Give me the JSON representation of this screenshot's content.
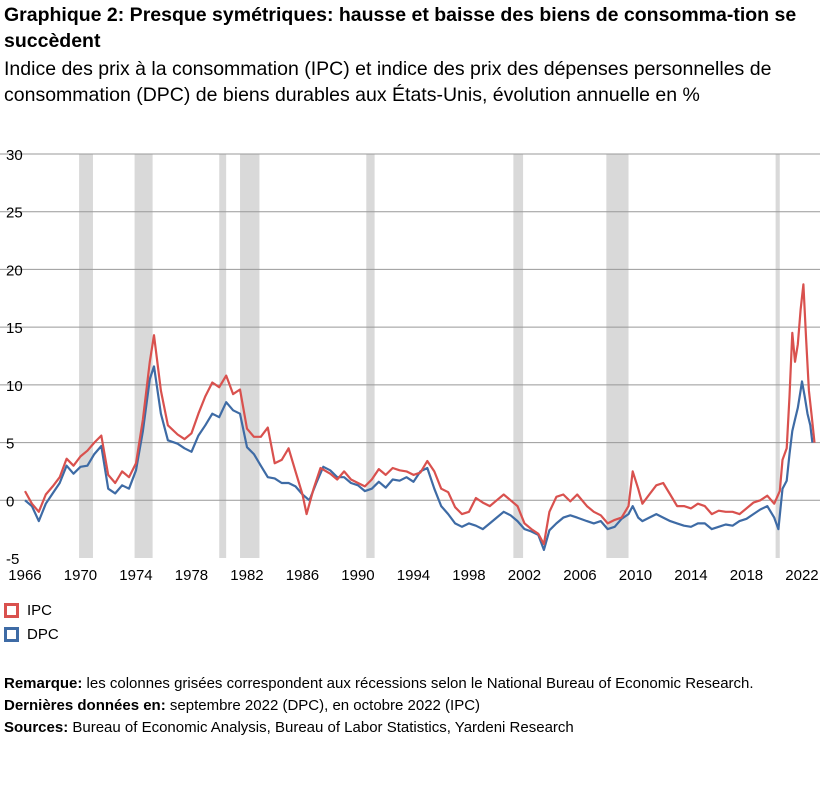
{
  "header": {
    "title": "Graphique 2: Presque symétriques: hausse et baisse des biens de consomma-tion se succèdent",
    "subtitle": "Indice des prix à la consommation (IPC) et indice des prix des dépenses personnelles de consommation (DPC) de biens durables aux États-Unis, évolution annuelle en %"
  },
  "chart_data": {
    "type": "line",
    "title": "",
    "xlabel": "",
    "ylabel": "",
    "xlim": [
      1964.2,
      2023.3
    ],
    "ylim": [
      -5,
      30
    ],
    "y_ticks": [
      30,
      25,
      20,
      15,
      10,
      5,
      0,
      -5
    ],
    "x_tick_labels": [
      "1966",
      "1970",
      "1974",
      "1978",
      "1982",
      "1986",
      "1990",
      "1994",
      "1998",
      "2002",
      "2006",
      "2010",
      "2014",
      "2018",
      "2022"
    ],
    "grid": "horizontal",
    "recessions": [
      [
        1969.9,
        1970.9
      ],
      [
        1973.9,
        1975.2
      ],
      [
        1980.0,
        1980.5
      ],
      [
        1981.5,
        1982.9
      ],
      [
        1990.6,
        1991.2
      ],
      [
        2001.2,
        2001.9
      ],
      [
        2007.9,
        2009.5
      ],
      [
        2020.1,
        2020.4
      ]
    ],
    "series": [
      {
        "name": "IPC",
        "color": "#d9514e",
        "points": [
          [
            1966.0,
            0.8
          ],
          [
            1966.5,
            -0.3
          ],
          [
            1967.0,
            -1.0
          ],
          [
            1967.5,
            0.5
          ],
          [
            1968.0,
            1.2
          ],
          [
            1968.5,
            2.0
          ],
          [
            1969.0,
            3.6
          ],
          [
            1969.5,
            3.0
          ],
          [
            1970.0,
            3.8
          ],
          [
            1970.5,
            4.3
          ],
          [
            1971.0,
            5.0
          ],
          [
            1971.5,
            5.6
          ],
          [
            1972.0,
            2.2
          ],
          [
            1972.5,
            1.5
          ],
          [
            1973.0,
            2.5
          ],
          [
            1973.5,
            2.0
          ],
          [
            1974.0,
            3.2
          ],
          [
            1974.5,
            7.0
          ],
          [
            1975.0,
            12.0
          ],
          [
            1975.3,
            14.3
          ],
          [
            1975.8,
            9.5
          ],
          [
            1976.3,
            6.5
          ],
          [
            1977.0,
            5.7
          ],
          [
            1977.5,
            5.3
          ],
          [
            1978.0,
            5.8
          ],
          [
            1978.5,
            7.5
          ],
          [
            1979.0,
            9.0
          ],
          [
            1979.5,
            10.2
          ],
          [
            1980.0,
            9.8
          ],
          [
            1980.5,
            10.8
          ],
          [
            1981.0,
            9.2
          ],
          [
            1981.5,
            9.6
          ],
          [
            1982.0,
            6.2
          ],
          [
            1982.5,
            5.5
          ],
          [
            1983.0,
            5.5
          ],
          [
            1983.5,
            6.3
          ],
          [
            1984.0,
            3.2
          ],
          [
            1984.5,
            3.5
          ],
          [
            1985.0,
            4.5
          ],
          [
            1985.5,
            2.5
          ],
          [
            1986.0,
            0.5
          ],
          [
            1986.3,
            -1.2
          ],
          [
            1986.8,
            1.0
          ],
          [
            1987.3,
            2.8
          ],
          [
            1988.0,
            2.3
          ],
          [
            1988.5,
            1.8
          ],
          [
            1989.0,
            2.5
          ],
          [
            1989.5,
            1.8
          ],
          [
            1990.0,
            1.5
          ],
          [
            1990.5,
            1.2
          ],
          [
            1991.0,
            1.8
          ],
          [
            1991.5,
            2.7
          ],
          [
            1992.0,
            2.2
          ],
          [
            1992.5,
            2.8
          ],
          [
            1993.0,
            2.6
          ],
          [
            1993.5,
            2.5
          ],
          [
            1994.0,
            2.2
          ],
          [
            1994.5,
            2.4
          ],
          [
            1995.0,
            3.4
          ],
          [
            1995.5,
            2.5
          ],
          [
            1996.0,
            1.0
          ],
          [
            1996.5,
            0.7
          ],
          [
            1997.0,
            -0.6
          ],
          [
            1997.5,
            -1.2
          ],
          [
            1998.0,
            -1.0
          ],
          [
            1998.5,
            0.2
          ],
          [
            1999.0,
            -0.2
          ],
          [
            1999.5,
            -0.5
          ],
          [
            2000.0,
            0.0
          ],
          [
            2000.5,
            0.5
          ],
          [
            2001.0,
            0.0
          ],
          [
            2001.5,
            -0.5
          ],
          [
            2002.0,
            -2.0
          ],
          [
            2002.5,
            -2.5
          ],
          [
            2003.0,
            -2.9
          ],
          [
            2003.4,
            -3.8
          ],
          [
            2003.8,
            -1.0
          ],
          [
            2004.3,
            0.3
          ],
          [
            2004.8,
            0.5
          ],
          [
            2005.3,
            -0.1
          ],
          [
            2005.8,
            0.5
          ],
          [
            2006.5,
            -0.5
          ],
          [
            2007.0,
            -1.0
          ],
          [
            2007.5,
            -1.3
          ],
          [
            2008.0,
            -2.0
          ],
          [
            2008.5,
            -1.7
          ],
          [
            2009.0,
            -1.5
          ],
          [
            2009.5,
            -0.5
          ],
          [
            2009.8,
            2.5
          ],
          [
            2010.2,
            1.0
          ],
          [
            2010.5,
            -0.3
          ],
          [
            2011.0,
            0.5
          ],
          [
            2011.5,
            1.3
          ],
          [
            2012.0,
            1.5
          ],
          [
            2012.5,
            0.5
          ],
          [
            2013.0,
            -0.5
          ],
          [
            2013.5,
            -0.5
          ],
          [
            2014.0,
            -0.7
          ],
          [
            2014.5,
            -0.3
          ],
          [
            2015.0,
            -0.5
          ],
          [
            2015.5,
            -1.2
          ],
          [
            2016.0,
            -0.9
          ],
          [
            2016.5,
            -1.0
          ],
          [
            2017.0,
            -1.0
          ],
          [
            2017.5,
            -1.2
          ],
          [
            2018.0,
            -0.7
          ],
          [
            2018.5,
            -0.2
          ],
          [
            2019.0,
            0.0
          ],
          [
            2019.5,
            0.4
          ],
          [
            2020.0,
            -0.3
          ],
          [
            2020.4,
            0.8
          ],
          [
            2020.6,
            3.5
          ],
          [
            2020.9,
            4.5
          ],
          [
            2021.1,
            9.0
          ],
          [
            2021.3,
            14.5
          ],
          [
            2021.5,
            12.0
          ],
          [
            2021.7,
            13.5
          ],
          [
            2021.9,
            16.5
          ],
          [
            2022.1,
            18.7
          ],
          [
            2022.3,
            14.0
          ],
          [
            2022.5,
            9.5
          ],
          [
            2022.7,
            7.3
          ],
          [
            2022.9,
            5.0
          ]
        ]
      },
      {
        "name": "DPC",
        "color": "#3e6ba5",
        "points": [
          [
            1966.0,
            0.0
          ],
          [
            1966.5,
            -0.5
          ],
          [
            1967.0,
            -1.8
          ],
          [
            1967.5,
            -0.3
          ],
          [
            1968.0,
            0.6
          ],
          [
            1968.5,
            1.5
          ],
          [
            1969.0,
            3.0
          ],
          [
            1969.5,
            2.3
          ],
          [
            1970.0,
            2.9
          ],
          [
            1970.5,
            3.0
          ],
          [
            1971.0,
            4.0
          ],
          [
            1971.5,
            4.7
          ],
          [
            1972.0,
            1.0
          ],
          [
            1972.5,
            0.6
          ],
          [
            1973.0,
            1.3
          ],
          [
            1973.5,
            1.0
          ],
          [
            1974.0,
            2.6
          ],
          [
            1974.5,
            6.0
          ],
          [
            1975.0,
            10.5
          ],
          [
            1975.3,
            11.6
          ],
          [
            1975.8,
            7.5
          ],
          [
            1976.3,
            5.2
          ],
          [
            1977.0,
            4.9
          ],
          [
            1977.5,
            4.5
          ],
          [
            1978.0,
            4.2
          ],
          [
            1978.5,
            5.6
          ],
          [
            1979.0,
            6.5
          ],
          [
            1979.5,
            7.5
          ],
          [
            1980.0,
            7.2
          ],
          [
            1980.5,
            8.5
          ],
          [
            1981.0,
            7.8
          ],
          [
            1981.5,
            7.5
          ],
          [
            1982.0,
            4.6
          ],
          [
            1982.5,
            4.0
          ],
          [
            1983.0,
            3.0
          ],
          [
            1983.5,
            2.0
          ],
          [
            1984.0,
            1.9
          ],
          [
            1984.5,
            1.5
          ],
          [
            1985.0,
            1.5
          ],
          [
            1985.5,
            1.2
          ],
          [
            1986.0,
            0.5
          ],
          [
            1986.5,
            0.0
          ],
          [
            1987.0,
            1.5
          ],
          [
            1987.5,
            2.9
          ],
          [
            1988.0,
            2.6
          ],
          [
            1988.5,
            2.0
          ],
          [
            1989.0,
            2.0
          ],
          [
            1989.5,
            1.5
          ],
          [
            1990.0,
            1.3
          ],
          [
            1990.5,
            0.8
          ],
          [
            1991.0,
            1.0
          ],
          [
            1991.5,
            1.6
          ],
          [
            1992.0,
            1.1
          ],
          [
            1992.5,
            1.8
          ],
          [
            1993.0,
            1.7
          ],
          [
            1993.5,
            2.0
          ],
          [
            1994.0,
            1.6
          ],
          [
            1994.5,
            2.5
          ],
          [
            1995.0,
            2.8
          ],
          [
            1995.5,
            1.0
          ],
          [
            1996.0,
            -0.5
          ],
          [
            1996.5,
            -1.2
          ],
          [
            1997.0,
            -2.0
          ],
          [
            1997.5,
            -2.3
          ],
          [
            1998.0,
            -2.0
          ],
          [
            1998.5,
            -2.2
          ],
          [
            1999.0,
            -2.5
          ],
          [
            1999.5,
            -2.0
          ],
          [
            2000.0,
            -1.5
          ],
          [
            2000.5,
            -1.0
          ],
          [
            2001.0,
            -1.3
          ],
          [
            2001.5,
            -1.8
          ],
          [
            2002.0,
            -2.5
          ],
          [
            2002.5,
            -2.7
          ],
          [
            2003.0,
            -3.0
          ],
          [
            2003.4,
            -4.3
          ],
          [
            2003.8,
            -2.6
          ],
          [
            2004.3,
            -2.0
          ],
          [
            2004.8,
            -1.5
          ],
          [
            2005.3,
            -1.3
          ],
          [
            2005.8,
            -1.5
          ],
          [
            2006.5,
            -1.8
          ],
          [
            2007.0,
            -2.0
          ],
          [
            2007.5,
            -1.8
          ],
          [
            2008.0,
            -2.5
          ],
          [
            2008.5,
            -2.3
          ],
          [
            2009.0,
            -1.6
          ],
          [
            2009.5,
            -1.2
          ],
          [
            2009.8,
            -0.5
          ],
          [
            2010.2,
            -1.5
          ],
          [
            2010.5,
            -1.8
          ],
          [
            2011.0,
            -1.5
          ],
          [
            2011.5,
            -1.2
          ],
          [
            2012.0,
            -1.5
          ],
          [
            2012.5,
            -1.8
          ],
          [
            2013.0,
            -2.0
          ],
          [
            2013.5,
            -2.2
          ],
          [
            2014.0,
            -2.3
          ],
          [
            2014.5,
            -2.0
          ],
          [
            2015.0,
            -2.0
          ],
          [
            2015.5,
            -2.5
          ],
          [
            2016.0,
            -2.3
          ],
          [
            2016.5,
            -2.1
          ],
          [
            2017.0,
            -2.2
          ],
          [
            2017.5,
            -1.8
          ],
          [
            2018.0,
            -1.6
          ],
          [
            2018.5,
            -1.2
          ],
          [
            2019.0,
            -0.8
          ],
          [
            2019.5,
            -0.5
          ],
          [
            2020.0,
            -1.5
          ],
          [
            2020.3,
            -2.5
          ],
          [
            2020.6,
            1.0
          ],
          [
            2020.9,
            1.7
          ],
          [
            2021.1,
            4.0
          ],
          [
            2021.3,
            6.0
          ],
          [
            2021.5,
            7.0
          ],
          [
            2021.7,
            8.0
          ],
          [
            2021.9,
            9.5
          ],
          [
            2022.0,
            10.3
          ],
          [
            2022.2,
            9.0
          ],
          [
            2022.4,
            7.5
          ],
          [
            2022.6,
            6.5
          ],
          [
            2022.75,
            5.0
          ]
        ]
      }
    ]
  },
  "legend": {
    "items": [
      {
        "label": "IPC",
        "color": "#d9514e"
      },
      {
        "label": "DPC",
        "color": "#3e6ba5"
      }
    ]
  },
  "notes": {
    "remark_key": "Remarque:",
    "remark_text": " les colonnes grisées correspondent aux récessions selon le National Bureau of Economic Research.",
    "latest_key": "Dernières données en:",
    "latest_text": " septembre 2022 (DPC), en octobre 2022 (IPC)",
    "sources_key": "Sources:",
    "sources_text": " Bureau of Economic Analysis, Bureau of Labor Statistics, Yardeni Research"
  },
  "colors": {
    "grid": "#999999",
    "recession_fill": "#d9d9d9"
  }
}
